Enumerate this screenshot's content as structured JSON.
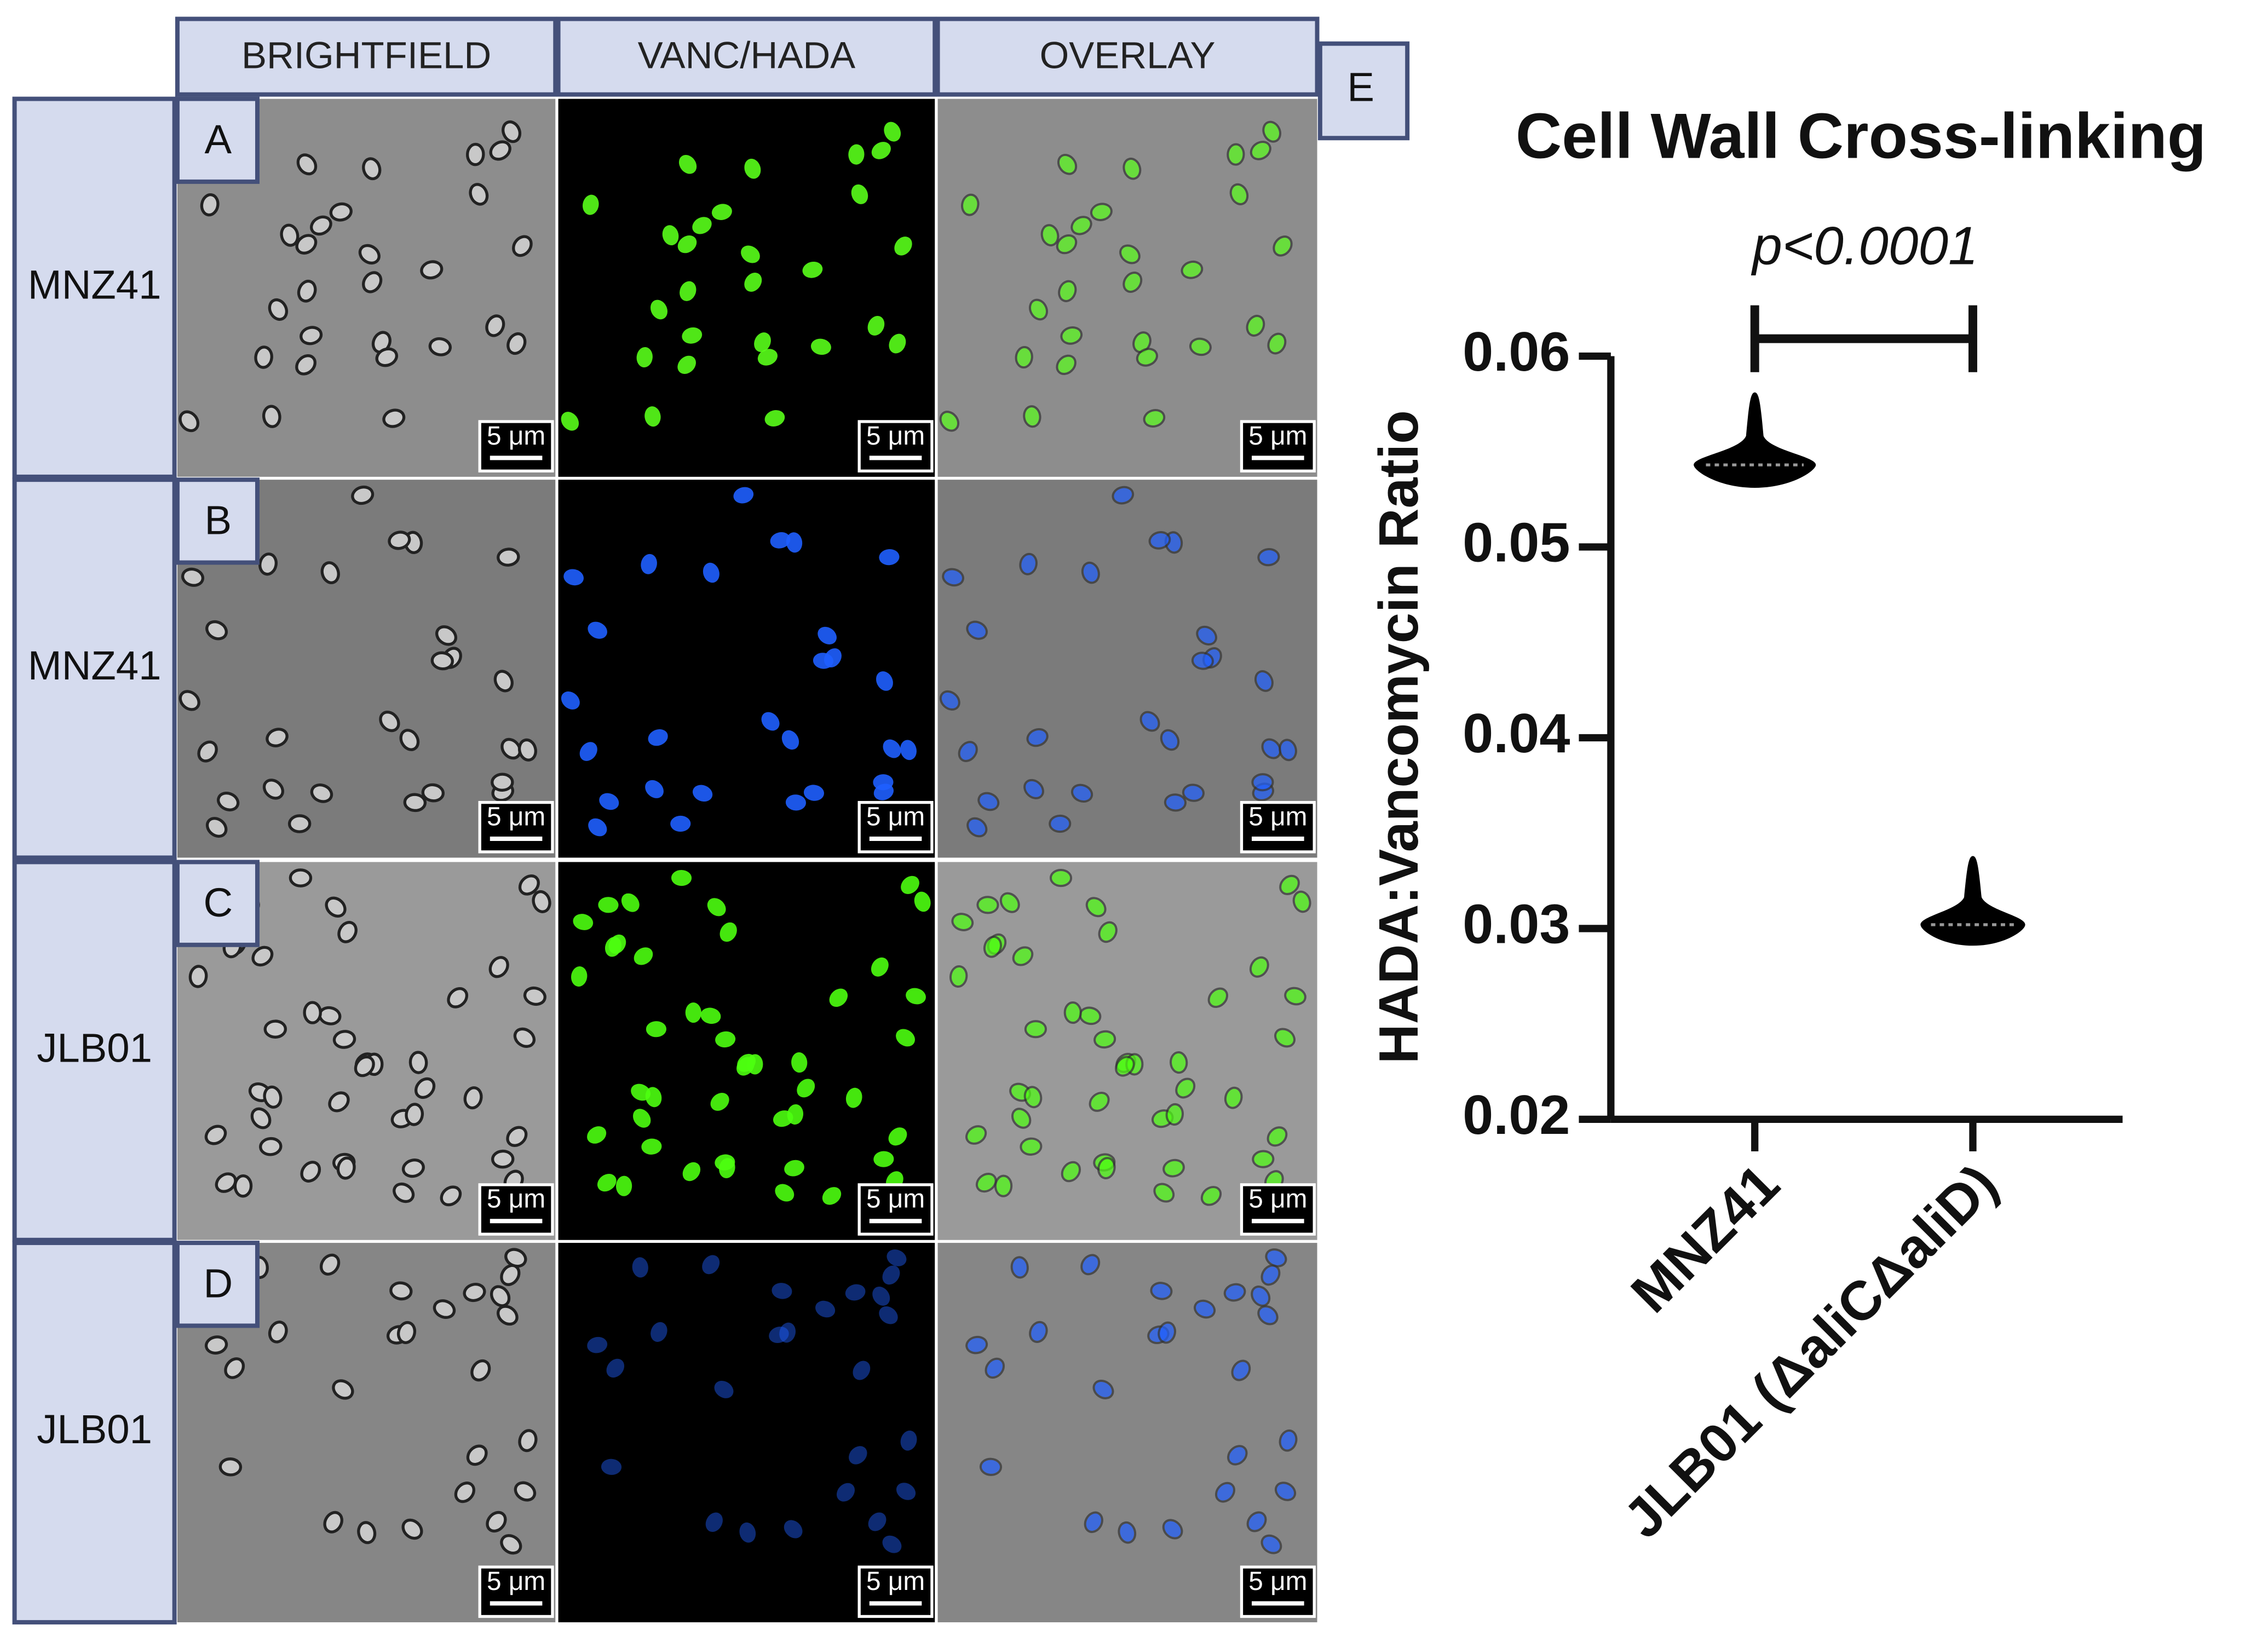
{
  "figure": {
    "column_headers": [
      "BRIGHTFIELD",
      "VANC/HADA",
      "OVERLAY"
    ],
    "row_labels": [
      "MNZ41",
      "MNZ41",
      "JLB01",
      "JLB01"
    ],
    "panel_letters": [
      "A",
      "B",
      "C",
      "D"
    ],
    "chart_letter": "E",
    "scale_bar_label": "5 μm"
  },
  "chart_data": {
    "type": "violin",
    "title": "Cell Wall Cross-linking",
    "annotation": "p<0.0001",
    "y_label": "HADA:Vancomycin Ratio",
    "categories": [
      "MNZ41",
      "JLB01 (ΔaliCΔaliD)"
    ],
    "values": [
      0.0543,
      0.0302
    ],
    "min": [
      0.0531,
      0.0291
    ],
    "max": [
      0.0581,
      0.0338
    ],
    "color": "#000000",
    "ylim": [
      0.02,
      0.06
    ],
    "yticks": [
      0.02,
      0.03,
      0.04,
      0.05,
      0.06
    ]
  }
}
